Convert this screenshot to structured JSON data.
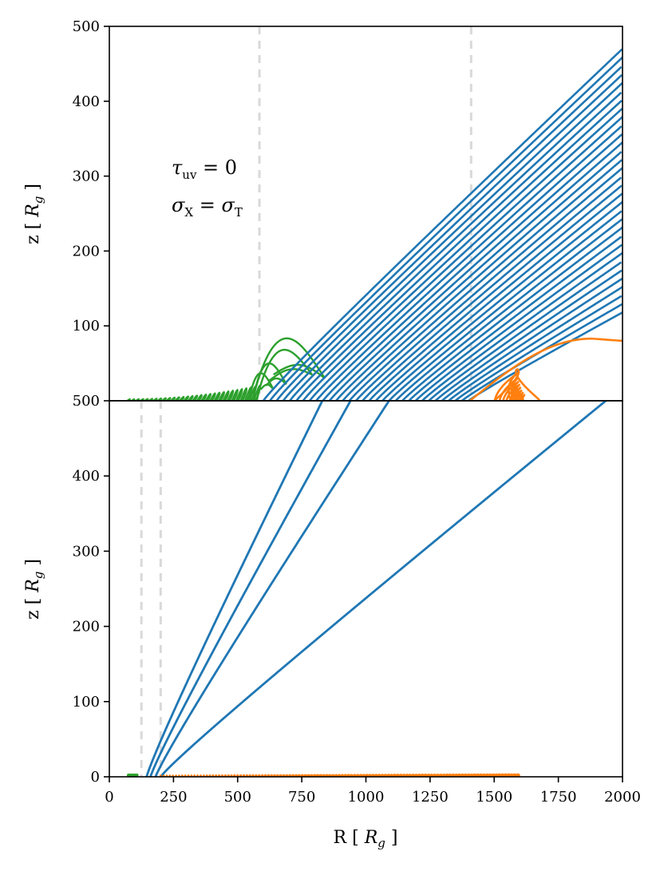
{
  "chart_data": [
    {
      "type": "line",
      "panel": "top",
      "ylabel": "z [ R_g ]",
      "xlim": [
        0,
        2000
      ],
      "ylim": [
        0,
        500
      ],
      "xticks": [],
      "yticks": [
        100,
        200,
        300,
        400,
        500
      ],
      "vlines": [
        585,
        1410
      ],
      "annotations": [
        "τ_uv = 0",
        "σ_X = σ_T"
      ],
      "colors": {
        "escaping": "#1f77b4",
        "failed": "#ff7f0e",
        "inner": "#2ca02c",
        "vline": "#d9d9d9"
      },
      "escaping_streamlines": {
        "x0_start": 600,
        "x0_end": 1400,
        "count": 32,
        "final_z_at_x2000": {
          "first": 470,
          "last": 118
        }
      },
      "failed_loops": {
        "x_start": 1405,
        "peak_x": 1880,
        "peak_z": 83,
        "end_z": 80
      },
      "inner_loops": {
        "x_start": 70,
        "x_end": 840,
        "max_z": 70
      }
    },
    {
      "type": "line",
      "panel": "bottom",
      "xlabel": "R [ R_g ]",
      "ylabel": "z [ R_g ]",
      "xlim": [
        0,
        2000
      ],
      "ylim": [
        0,
        500
      ],
      "xticks": [
        0,
        250,
        500,
        750,
        1000,
        1250,
        1500,
        1750,
        2000
      ],
      "yticks": [
        0,
        100,
        200,
        300,
        400,
        500
      ],
      "vlines": [
        125,
        200
      ],
      "escaping_streamlines": [
        {
          "x0": 145,
          "x_at_500": 830
        },
        {
          "x0": 160,
          "x_at_500": 940
        },
        {
          "x0": 180,
          "x_at_500": 1090
        },
        {
          "x0": 200,
          "x_at_500": 1935
        }
      ],
      "failed_dots": {
        "x_start": 200,
        "x_end": 1600
      },
      "inner_dots": {
        "x_start": 75,
        "x_end": 110
      }
    }
  ],
  "labels": {
    "top_ylabel_main": "z [ ",
    "top_ylabel_var": "R",
    "top_ylabel_sub": "g",
    "top_ylabel_end": " ]",
    "bottom_ylabel_main": "z [ ",
    "bottom_ylabel_var": "R",
    "bottom_ylabel_sub": "g",
    "bottom_ylabel_end": " ]",
    "xlabel_main": "R [ ",
    "xlabel_var": "R",
    "xlabel_sub": "g",
    "xlabel_end": " ]",
    "annot1_var": "τ",
    "annot1_sub": "uv",
    "annot1_rest": " = 0",
    "annot2_var": "σ",
    "annot2_sub": "X",
    "annot2_eq": " = σ",
    "annot2_sub2": "T"
  }
}
